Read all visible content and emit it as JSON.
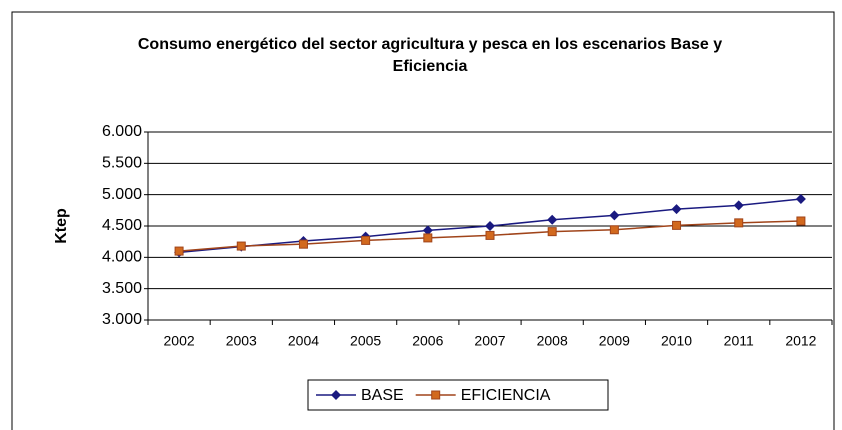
{
  "chart_data": {
    "type": "line",
    "title": "Consumo energético del sector agricultura y pesca en los escenarios Base y Eficiencia",
    "y_label": "Ktep",
    "categories": [
      "2002",
      "2003",
      "2004",
      "2005",
      "2006",
      "2007",
      "2008",
      "2009",
      "2010",
      "2011",
      "2012"
    ],
    "series": [
      {
        "name": "BASE",
        "color": "#1a1a80",
        "marker": "diamond",
        "values": [
          4080,
          4170,
          4260,
          4330,
          4430,
          4500,
          4600,
          4670,
          4770,
          4830,
          4930
        ]
      },
      {
        "name": "EFICIENCIA",
        "color": "#a0441a",
        "marker": "square",
        "values": [
          4100,
          4180,
          4210,
          4270,
          4310,
          4350,
          4410,
          4440,
          4510,
          4550,
          4580
        ]
      }
    ],
    "ylim": [
      3000,
      6000
    ],
    "yticks": [
      {
        "value": 3000,
        "label": "3.000"
      },
      {
        "value": 3500,
        "label": "3.500"
      },
      {
        "value": 4000,
        "label": "4.000"
      },
      {
        "value": 4500,
        "label": "4.500"
      },
      {
        "value": 5000,
        "label": "5.000"
      },
      {
        "value": 5500,
        "label": "5.500"
      },
      {
        "value": 6000,
        "label": "6.000"
      }
    ],
    "grid": true,
    "legend": "bottom"
  }
}
